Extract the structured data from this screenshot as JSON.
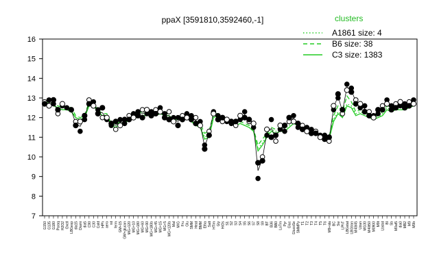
{
  "chart_data": {
    "type": "line",
    "title": "ppaX [3591810,3592460,-1]",
    "xlabel": "",
    "ylabel": "",
    "ylim": [
      7,
      16
    ],
    "yticks": [
      7,
      8,
      9,
      10,
      11,
      12,
      13,
      14,
      15,
      16
    ],
    "grid": false,
    "legend": {
      "placement": "top-right",
      "title": "clusters",
      "entries": [
        {
          "label": "A1861 size: 4",
          "style": "dotted"
        },
        {
          "label": "B6 size: 38",
          "style": "dashed"
        },
        {
          "label": "C3 size: 1383",
          "style": "solid"
        }
      ]
    },
    "colors": {
      "series": "#22cc22",
      "points": "#000000",
      "axis": "#000000"
    },
    "x_labels": [
      "G150",
      "G135",
      "G180",
      "Paraq",
      "H2O2",
      "Oxctl",
      "LBGexp",
      "dia15",
      "Diami",
      "dia5",
      "C90",
      "C30",
      "Cold",
      "HPh",
      "aero",
      "nit",
      "ferm",
      "GM+15",
      "GM+glucan",
      "MG+120",
      "MG+10",
      "MG+180",
      "MG+60",
      "MG+90",
      "MG+180b",
      "MG+45",
      "MG+15",
      "MG+5",
      "MG+120b",
      "Mal",
      "M/G",
      "Fru",
      "Glu",
      "SMM",
      "Heat",
      "BMM",
      "Etha",
      "Salt",
      "HTim",
      "Gly",
      "HiOs",
      "S1",
      "S2",
      "S3",
      "S4",
      "S5",
      "S6",
      "S7",
      "S8",
      "S9",
      "BT",
      "B36",
      "BB0",
      "LoTm",
      "Pyr",
      "Gluc",
      "GlucoSe",
      "SMMPy",
      "T1",
      "T2",
      "T3",
      "T4",
      "T5",
      "T6",
      "M9+sta",
      "BC",
      "Sw",
      "LPhT",
      "LBGstat",
      "LBGtran",
      "M40t45",
      "Uzan",
      "MG30",
      "M40t50",
      "M0900",
      "M9t",
      "Lbstat",
      "BI",
      "Sb",
      "M0at5",
      "dia0",
      "MB2",
      "M9",
      "M9b"
    ],
    "series": [
      {
        "name": "C3 size: 1383",
        "values": [
          12.6,
          12.7,
          12.6,
          12.5,
          12.4,
          12.4,
          12.3,
          12.0,
          11.9,
          12.0,
          12.6,
          12.6,
          12.3,
          12.1,
          12.1,
          11.6,
          11.5,
          11.7,
          11.7,
          11.9,
          12.0,
          12.0,
          12.1,
          12.1,
          12.1,
          12.1,
          12.2,
          12.1,
          12.1,
          11.9,
          11.9,
          11.9,
          12.0,
          11.8,
          11.6,
          11.5,
          10.9,
          11.0,
          12.0,
          12.1,
          11.8,
          11.8,
          11.7,
          11.6,
          11.7,
          11.6,
          11.5,
          11.3,
          10.3,
          10.6,
          11.0,
          11.3,
          11.2,
          11.3,
          11.3,
          11.5,
          11.7,
          11.6,
          11.5,
          11.4,
          11.3,
          11.2,
          11.0,
          11.0,
          10.9,
          11.8,
          12.2,
          12.0,
          12.6,
          12.5,
          12.1,
          12.2,
          12.1,
          12.0,
          11.9,
          12.0,
          12.1,
          12.4,
          12.3,
          12.4,
          12.4,
          12.4,
          12.5,
          12.6
        ]
      },
      {
        "name": "B6 size: 38",
        "values": [
          12.7,
          12.8,
          12.7,
          12.6,
          12.5,
          12.6,
          12.5,
          12.1,
          12.0,
          12.1,
          12.8,
          12.7,
          12.4,
          12.2,
          12.2,
          11.7,
          11.6,
          11.8,
          11.8,
          12.1,
          12.2,
          12.2,
          12.3,
          12.3,
          12.3,
          12.3,
          12.4,
          12.2,
          12.2,
          12.0,
          12.0,
          12.0,
          12.1,
          11.9,
          11.8,
          11.7,
          11.2,
          11.3,
          12.2,
          12.2,
          11.9,
          11.9,
          11.8,
          11.7,
          11.8,
          11.7,
          11.6,
          11.4,
          10.6,
          10.9,
          11.2,
          11.5,
          11.4,
          11.5,
          11.5,
          11.8,
          11.9,
          11.7,
          11.6,
          11.5,
          11.4,
          11.3,
          11.1,
          11.1,
          11.0,
          12.1,
          12.6,
          12.3,
          13.1,
          12.8,
          12.3,
          12.4,
          12.3,
          12.1,
          12.0,
          12.1,
          12.3,
          12.6,
          12.5,
          12.6,
          12.6,
          12.6,
          12.7,
          12.8
        ]
      },
      {
        "name": "A1861 size: 4",
        "values": [
          12.6,
          12.7,
          12.6,
          12.5,
          12.4,
          12.5,
          12.4,
          12.0,
          11.9,
          12.0,
          12.7,
          12.6,
          12.3,
          12.1,
          12.1,
          11.6,
          11.5,
          11.7,
          11.7,
          12.0,
          12.1,
          12.1,
          12.2,
          12.2,
          12.2,
          12.2,
          12.3,
          12.1,
          12.1,
          11.9,
          11.9,
          11.9,
          12.0,
          11.8,
          11.7,
          11.6,
          11.0,
          11.1,
          12.1,
          12.1,
          11.8,
          11.8,
          11.7,
          11.6,
          11.7,
          11.6,
          11.5,
          11.3,
          10.4,
          10.7,
          11.1,
          11.4,
          11.3,
          11.4,
          11.4,
          11.6,
          11.8,
          11.6,
          11.5,
          11.4,
          11.3,
          11.2,
          11.0,
          11.0,
          10.9,
          11.9,
          12.3,
          12.1,
          12.7,
          12.6,
          12.2,
          12.3,
          12.2,
          12.0,
          11.9,
          12.0,
          12.2,
          12.5,
          12.4,
          12.5,
          12.5,
          12.5,
          12.6,
          12.7
        ]
      }
    ],
    "points": [
      {
        "i": 0,
        "y": 12.8
      },
      {
        "i": 0,
        "y": 12.7
      },
      {
        "i": 1,
        "y": 12.9
      },
      {
        "i": 1,
        "y": 12.6
      },
      {
        "i": 2,
        "y": 12.7
      },
      {
        "i": 2,
        "y": 12.9
      },
      {
        "i": 3,
        "y": 12.2
      },
      {
        "i": 3,
        "y": 12.4
      },
      {
        "i": 4,
        "y": 12.6
      },
      {
        "i": 4,
        "y": 12.7
      },
      {
        "i": 5,
        "y": 12.5
      },
      {
        "i": 6,
        "y": 12.4
      },
      {
        "i": 7,
        "y": 11.8
      },
      {
        "i": 7,
        "y": 11.6
      },
      {
        "i": 8,
        "y": 11.3
      },
      {
        "i": 8,
        "y": 11.8
      },
      {
        "i": 9,
        "y": 11.9
      },
      {
        "i": 9,
        "y": 12.1
      },
      {
        "i": 10,
        "y": 12.9
      },
      {
        "i": 10,
        "y": 12.7
      },
      {
        "i": 11,
        "y": 12.8
      },
      {
        "i": 11,
        "y": 12.6
      },
      {
        "i": 12,
        "y": 12.4
      },
      {
        "i": 12,
        "y": 12.2
      },
      {
        "i": 13,
        "y": 12.0
      },
      {
        "i": 13,
        "y": 12.5
      },
      {
        "i": 14,
        "y": 11.9
      },
      {
        "i": 14,
        "y": 12.0
      },
      {
        "i": 15,
        "y": 11.6
      },
      {
        "i": 15,
        "y": 11.7
      },
      {
        "i": 16,
        "y": 11.4
      },
      {
        "i": 16,
        "y": 11.8
      },
      {
        "i": 17,
        "y": 11.9
      },
      {
        "i": 17,
        "y": 11.6
      },
      {
        "i": 18,
        "y": 11.7
      },
      {
        "i": 18,
        "y": 11.9
      },
      {
        "i": 19,
        "y": 12.1
      },
      {
        "i": 19,
        "y": 11.9
      },
      {
        "i": 20,
        "y": 12.2
      },
      {
        "i": 20,
        "y": 12.0
      },
      {
        "i": 21,
        "y": 12.3
      },
      {
        "i": 21,
        "y": 12.1
      },
      {
        "i": 22,
        "y": 12.4
      },
      {
        "i": 22,
        "y": 12.0
      },
      {
        "i": 23,
        "y": 12.2
      },
      {
        "i": 23,
        "y": 12.4
      },
      {
        "i": 24,
        "y": 12.3
      },
      {
        "i": 24,
        "y": 12.1
      },
      {
        "i": 25,
        "y": 12.4
      },
      {
        "i": 25,
        "y": 12.2
      },
      {
        "i": 26,
        "y": 12.5
      },
      {
        "i": 26,
        "y": 12.3
      },
      {
        "i": 27,
        "y": 12.2
      },
      {
        "i": 27,
        "y": 12.0
      },
      {
        "i": 28,
        "y": 12.3
      },
      {
        "i": 28,
        "y": 11.9
      },
      {
        "i": 29,
        "y": 12.0
      },
      {
        "i": 29,
        "y": 11.8
      },
      {
        "i": 30,
        "y": 12.0
      },
      {
        "i": 30,
        "y": 11.6
      },
      {
        "i": 31,
        "y": 12.1
      },
      {
        "i": 31,
        "y": 11.9
      },
      {
        "i": 32,
        "y": 12.2
      },
      {
        "i": 32,
        "y": 12.0
      },
      {
        "i": 33,
        "y": 12.1
      },
      {
        "i": 33,
        "y": 11.9
      },
      {
        "i": 34,
        "y": 12.0
      },
      {
        "i": 34,
        "y": 11.7
      },
      {
        "i": 35,
        "y": 11.8
      },
      {
        "i": 35,
        "y": 11.6
      },
      {
        "i": 36,
        "y": 10.6
      },
      {
        "i": 36,
        "y": 10.4
      },
      {
        "i": 37,
        "y": 11.3
      },
      {
        "i": 37,
        "y": 11.1
      },
      {
        "i": 38,
        "y": 12.3
      },
      {
        "i": 38,
        "y": 12.2
      },
      {
        "i": 39,
        "y": 12.1
      },
      {
        "i": 39,
        "y": 11.9
      },
      {
        "i": 40,
        "y": 11.8
      },
      {
        "i": 40,
        "y": 12.0
      },
      {
        "i": 41,
        "y": 11.8
      },
      {
        "i": 41,
        "y": 11.9
      },
      {
        "i": 42,
        "y": 11.7
      },
      {
        "i": 42,
        "y": 11.8
      },
      {
        "i": 43,
        "y": 11.6
      },
      {
        "i": 43,
        "y": 11.8
      },
      {
        "i": 44,
        "y": 11.9
      },
      {
        "i": 44,
        "y": 12.1
      },
      {
        "i": 45,
        "y": 12.3
      },
      {
        "i": 45,
        "y": 12.0
      },
      {
        "i": 46,
        "y": 11.8
      },
      {
        "i": 46,
        "y": 11.9
      },
      {
        "i": 47,
        "y": 11.5
      },
      {
        "i": 47,
        "y": 11.7
      },
      {
        "i": 48,
        "y": 8.9
      },
      {
        "i": 48,
        "y": 9.7
      },
      {
        "i": 49,
        "y": 10.0
      },
      {
        "i": 49,
        "y": 9.8
      },
      {
        "i": 50,
        "y": 11.1
      },
      {
        "i": 50,
        "y": 11.4
      },
      {
        "i": 51,
        "y": 11.9
      },
      {
        "i": 51,
        "y": 11.0
      },
      {
        "i": 52,
        "y": 10.8
      },
      {
        "i": 52,
        "y": 11.1
      },
      {
        "i": 53,
        "y": 11.4
      },
      {
        "i": 53,
        "y": 11.6
      },
      {
        "i": 54,
        "y": 11.3
      },
      {
        "i": 54,
        "y": 11.6
      },
      {
        "i": 55,
        "y": 11.8
      },
      {
        "i": 55,
        "y": 12.0
      },
      {
        "i": 56,
        "y": 12.1
      },
      {
        "i": 56,
        "y": 11.8
      },
      {
        "i": 57,
        "y": 11.5
      },
      {
        "i": 57,
        "y": 11.7
      },
      {
        "i": 58,
        "y": 11.6
      },
      {
        "i": 58,
        "y": 11.4
      },
      {
        "i": 59,
        "y": 11.5
      },
      {
        "i": 59,
        "y": 11.3
      },
      {
        "i": 60,
        "y": 11.4
      },
      {
        "i": 60,
        "y": 11.2
      },
      {
        "i": 61,
        "y": 11.3
      },
      {
        "i": 61,
        "y": 11.2
      },
      {
        "i": 62,
        "y": 11.1
      },
      {
        "i": 62,
        "y": 11.0
      },
      {
        "i": 63,
        "y": 11.1
      },
      {
        "i": 63,
        "y": 10.9
      },
      {
        "i": 64,
        "y": 10.8
      },
      {
        "i": 64,
        "y": 11.0
      },
      {
        "i": 65,
        "y": 12.4
      },
      {
        "i": 65,
        "y": 12.6
      },
      {
        "i": 66,
        "y": 13.0
      },
      {
        "i": 66,
        "y": 13.2
      },
      {
        "i": 67,
        "y": 12.2
      },
      {
        "i": 67,
        "y": 12.4
      },
      {
        "i": 68,
        "y": 13.7
      },
      {
        "i": 68,
        "y": 13.4
      },
      {
        "i": 69,
        "y": 13.5
      },
      {
        "i": 69,
        "y": 13.3
      },
      {
        "i": 70,
        "y": 12.9
      },
      {
        "i": 70,
        "y": 12.7
      },
      {
        "i": 71,
        "y": 12.5
      },
      {
        "i": 71,
        "y": 12.7
      },
      {
        "i": 72,
        "y": 12.6
      },
      {
        "i": 72,
        "y": 12.3
      },
      {
        "i": 73,
        "y": 12.3
      },
      {
        "i": 73,
        "y": 12.1
      },
      {
        "i": 74,
        "y": 12.1
      },
      {
        "i": 74,
        "y": 12.0
      },
      {
        "i": 75,
        "y": 12.2
      },
      {
        "i": 75,
        "y": 12.4
      },
      {
        "i": 76,
        "y": 12.6
      },
      {
        "i": 76,
        "y": 12.4
      },
      {
        "i": 77,
        "y": 12.9
      },
      {
        "i": 77,
        "y": 12.7
      },
      {
        "i": 78,
        "y": 12.6
      },
      {
        "i": 78,
        "y": 12.4
      },
      {
        "i": 79,
        "y": 12.7
      },
      {
        "i": 79,
        "y": 12.5
      },
      {
        "i": 80,
        "y": 12.6
      },
      {
        "i": 80,
        "y": 12.8
      },
      {
        "i": 81,
        "y": 12.7
      },
      {
        "i": 81,
        "y": 12.5
      },
      {
        "i": 82,
        "y": 12.8
      },
      {
        "i": 82,
        "y": 12.6
      },
      {
        "i": 83,
        "y": 12.9
      },
      {
        "i": 83,
        "y": 12.7
      }
    ]
  }
}
